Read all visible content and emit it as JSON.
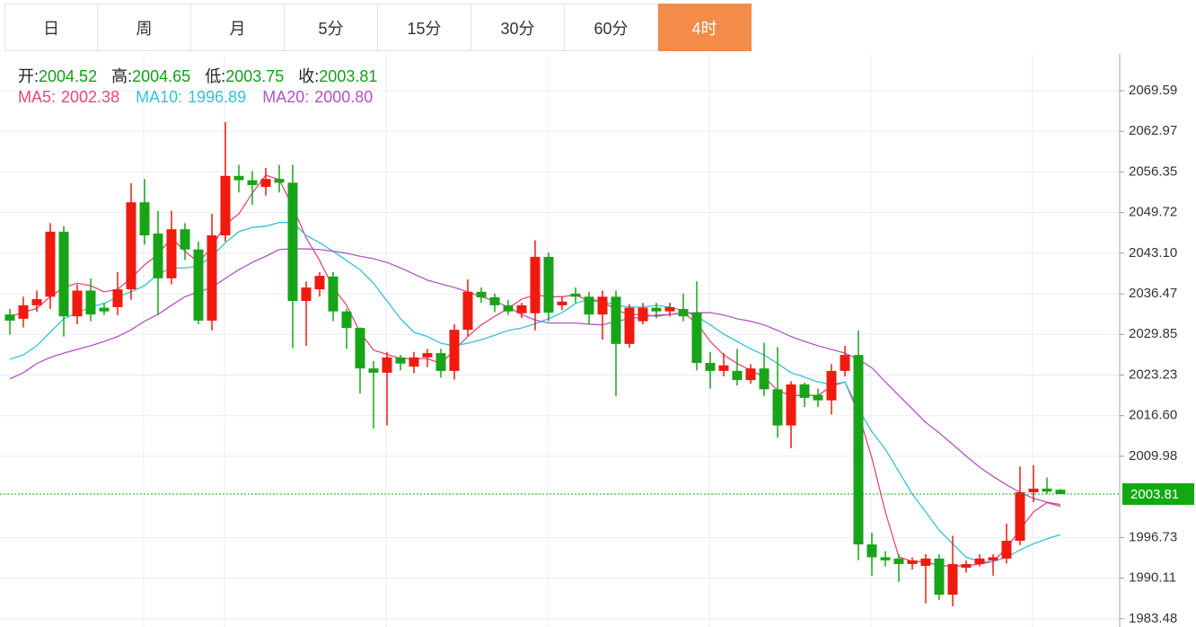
{
  "tabs": [
    {
      "label": "日"
    },
    {
      "label": "周"
    },
    {
      "label": "月"
    },
    {
      "label": "5分"
    },
    {
      "label": "15分"
    },
    {
      "label": "30分"
    },
    {
      "label": "60分"
    },
    {
      "label": "4时",
      "active": true
    }
  ],
  "chart_data": {
    "type": "candlestick",
    "ohlc_info": [
      {
        "label": "开:",
        "value": 2004.52
      },
      {
        "label": "高:",
        "value": 2004.65
      },
      {
        "label": "低:",
        "value": 2003.75
      },
      {
        "label": "收:",
        "value": 2003.81
      }
    ],
    "up_color": "#f01a0f",
    "down_color": "#18a418",
    "open": [
      2033.1,
      2032.4,
      2034.6,
      2036,
      2046.6,
      2032.8,
      2037,
      2034.2,
      2034.3,
      2037.2,
      2051.4,
      2046.3,
      2039,
      2047,
      2043.7,
      2032.1,
      2046,
      2055.7,
      2055,
      2053.9,
      2055.2,
      2054.6,
      2035.3,
      2037.2,
      2039.3,
      2033.6,
      2030.9,
      2024.3,
      2023.6,
      2026.1,
      2024.6,
      2026.1,
      2026.8,
      2023.9,
      2030.6,
      2036.8,
      2035.9,
      2034.6,
      2033.3,
      2033.3,
      2042.5,
      2034.6,
      2036.5,
      2036,
      2033.1,
      2036,
      2028.3,
      2032,
      2034.2,
      2033.6,
      2034,
      2033.4,
      2025.2,
      2023.9,
      2023.9,
      2022.4,
      2024.3,
      2020.9,
      2015,
      2021.7,
      2020,
      2019.1,
      2023.9,
      2026.5,
      1995.6,
      1993.5,
      1993.3,
      1992.4,
      1992.1,
      1993.3,
      1987.4,
      1991.8,
      1992.4,
      1993,
      1993.3,
      1996.2,
      2004.1,
      2004.7,
      2004.52
    ],
    "high": [
      2034,
      2036,
      2037,
      2048,
      2047.5,
      2038,
      2039,
      2035,
      2040,
      2054.5,
      2055.2,
      2050,
      2050,
      2048,
      2045,
      2049.5,
      2064.5,
      2057.5,
      2056.5,
      2057,
      2057.5,
      2057.5,
      2038.5,
      2040,
      2040,
      2034,
      2031,
      2025.5,
      2027,
      2026.5,
      2027,
      2027.5,
      2027.5,
      2031.5,
      2038.8,
      2037.5,
      2036.5,
      2035.5,
      2035,
      2045.2,
      2043.2,
      2036,
      2037.5,
      2036.8,
      2037,
      2037,
      2034.8,
      2035,
      2035,
      2035,
      2036.5,
      2038.5,
      2027,
      2026.8,
      2027.5,
      2025,
      2028.5,
      2027.8,
      2022.2,
      2022,
      2021,
      2025,
      2028,
      2030.5,
      1997.5,
      1994.5,
      1994,
      1993.5,
      1994,
      1994,
      1997,
      1993,
      1994,
      1994,
      1999,
      2008.3,
      2008.5,
      2006.5,
      2004.65
    ],
    "low": [
      2029.8,
      2031,
      2033.5,
      2034,
      2029.5,
      2031.5,
      2032,
      2033,
      2033,
      2035.5,
      2044.5,
      2033,
      2038,
      2042,
      2031.5,
      2030.5,
      2045,
      2053,
      2051,
      2052.5,
      2053,
      2027.6,
      2028,
      2036,
      2032,
      2027.5,
      2020.2,
      2014.5,
      2015,
      2024,
      2023.5,
      2024.5,
      2022.8,
      2022.5,
      2029.5,
      2035,
      2033.5,
      2033,
      2032.5,
      2030.5,
      2032,
      2033.8,
      2035,
      2031.5,
      2029,
      2019.8,
      2027.7,
      2031.5,
      2032.5,
      2032.8,
      2032,
      2024,
      2021,
      2023,
      2021.5,
      2021.8,
      2019.8,
      2013,
      2011.3,
      2018,
      2018,
      2016.8,
      2023,
      1993,
      1990.5,
      1992,
      1989.5,
      1991.5,
      1986,
      1986.5,
      1985.5,
      1991,
      1992,
      1990.5,
      1992.5,
      1995.5,
      2002.5,
      2003.8,
      2003.75
    ],
    "close": [
      2032.1,
      2034.6,
      2035.6,
      2046.6,
      2032.8,
      2037,
      2033.1,
      2033.6,
      2037.2,
      2051.4,
      2046,
      2039,
      2047,
      2043.7,
      2032.1,
      2046,
      2055.7,
      2055,
      2054.2,
      2055.2,
      2054.6,
      2035.3,
      2037.5,
      2039.4,
      2033.6,
      2030.9,
      2024.3,
      2023.6,
      2026.1,
      2025.1,
      2026.1,
      2026.8,
      2023.9,
      2030.6,
      2036.8,
      2035.9,
      2034.6,
      2033.6,
      2034.6,
      2042.5,
      2033.4,
      2035.2,
      2036,
      2033.1,
      2036,
      2028.3,
      2034.2,
      2034.2,
      2033.6,
      2034.3,
      2032.8,
      2025.2,
      2023.9,
      2024.8,
      2022.4,
      2024.3,
      2020.9,
      2015,
      2021.7,
      2019.5,
      2019.1,
      2023.9,
      2026.5,
      1995.6,
      1993.5,
      1993,
      1992.4,
      1993,
      1993.3,
      1987.4,
      1992.4,
      1992.4,
      1993.3,
      1993.5,
      1996.2,
      2004.1,
      2004.7,
      2004.2,
      2003.81
    ],
    "moving_averages": [
      {
        "label": "MA5:",
        "current": 2002.38,
        "color": "#e8467c",
        "values": [
          2032.8,
          2033.4,
          2034.1,
          2036,
          2037.5,
          2038.2,
          2037.8,
          2036.8,
          2037.2,
          2039,
          2041.2,
          2042.9,
          2045.6,
          2043.4,
          2041.6,
          2044.1,
          2047.8,
          2049.5,
          2052.9,
          2055.8,
          2055.1,
          2050.7,
          2045.6,
          2041.9,
          2037.5,
          2034.6,
          2030.2,
          2027.3,
          2026.6,
          2025.9,
          2025.9,
          2025.9,
          2025.1,
          2027.3,
          2029.5,
          2031.4,
          2032.8,
          2034.1,
          2035.6,
          2036.3,
          2036,
          2036,
          2036.3,
          2035.3,
          2035.3,
          2033.8,
          2033.1,
          2033.1,
          2032.8,
          2033.1,
          2033.4,
          2031.7,
          2028.7,
          2026.5,
          2025.1,
          2024,
          2022.9,
          2020.7,
          2019.9,
          2019.9,
          2019.9,
          2021.4,
          2022.1,
          2017,
          2009.7,
          2000.9,
          1993.6,
          1992.8,
          1992.8,
          1992.1,
          1992.1,
          1992.1,
          1992.4,
          1992.8,
          1995,
          1998,
          2000.9,
          2002.4,
          2001.8
        ]
      },
      {
        "label": "MA10:",
        "current": 1996.89,
        "color": "#35c2d6",
        "values": [
          2025.8,
          2026.5,
          2028,
          2030.2,
          2032.4,
          2033.4,
          2034.3,
          2034.9,
          2036,
          2036.8,
          2037.8,
          2039.7,
          2040.7,
          2040.7,
          2041,
          2042.6,
          2044.8,
          2046.6,
          2047.3,
          2047.5,
          2048.1,
          2048.1,
          2046,
          2044.8,
          2043.4,
          2041.9,
          2040.4,
          2038.2,
          2035.3,
          2032.4,
          2030.2,
          2029.5,
          2028.4,
          2028,
          2028.4,
          2029,
          2029.7,
          2030.5,
          2030.9,
          2031.6,
          2032.4,
          2033.4,
          2034.9,
          2035.6,
          2035.3,
          2034.6,
          2034.3,
          2034.3,
          2034.6,
          2034.3,
          2033.7,
          2032.8,
          2031.4,
          2029.9,
          2028.7,
          2027.5,
          2026.5,
          2025.1,
          2023.6,
          2022.9,
          2022.1,
          2021.7,
          2022.1,
          2017.7,
          2014,
          2011.1,
          2007.5,
          2003.8,
          2000.9,
          1997.9,
          1995.7,
          1993.5,
          1992.8,
          1992.8,
          1993.5,
          1994.7,
          1995.7,
          1996.5,
          1997.2
        ]
      },
      {
        "label": "MA20:",
        "current": 2000.8,
        "current_label": "2000.80",
        "color": "#b255c2",
        "values": [
          2022.6,
          2023.6,
          2025.1,
          2026.1,
          2026.8,
          2027.4,
          2028,
          2028.7,
          2029.5,
          2030.6,
          2032,
          2033.1,
          2034.6,
          2036,
          2036.8,
          2037.5,
          2039,
          2040.4,
          2041.6,
          2042.6,
          2043.7,
          2043.8,
          2043.8,
          2043.7,
          2043.4,
          2043.1,
          2042.6,
          2042.2,
          2041.6,
          2040.7,
          2039.7,
          2038.7,
          2038.1,
          2037.5,
          2036.8,
          2036,
          2035.3,
          2034.3,
          2033.1,
          2032.2,
          2031.7,
          2031.7,
          2031.7,
          2031.5,
          2031.4,
          2032,
          2032.4,
          2032.7,
          2033,
          2033.1,
          2033.3,
          2033.4,
          2033.4,
          2033,
          2032.4,
          2032,
          2031.4,
          2030.5,
          2029.5,
          2028.7,
          2028,
          2027.4,
          2026.8,
          2025.8,
          2024.4,
          2022.1,
          2019.9,
          2017.7,
          2015.5,
          2013.8,
          2011.9,
          2010,
          2008.2,
          2006.7,
          2005.3,
          2004.1,
          2003.1,
          2002.5,
          2002.1
        ]
      }
    ],
    "last_price": 2003.81,
    "last_price_color": "#13a813",
    "ylim": [
      1982.13,
      2075.6
    ],
    "yticks": [
      1983.48,
      1990.11,
      1996.73,
      {
        "value": 2009.98,
        "label": "2009.98"
      },
      {
        "value": 2016.6,
        "label": "2016.60"
      },
      2023.23,
      2029.85,
      2036.47,
      {
        "value": 2043.1,
        "label": "2043.10"
      },
      2049.72,
      2056.35,
      2062.97,
      2069.59
    ],
    "grid": true
  }
}
